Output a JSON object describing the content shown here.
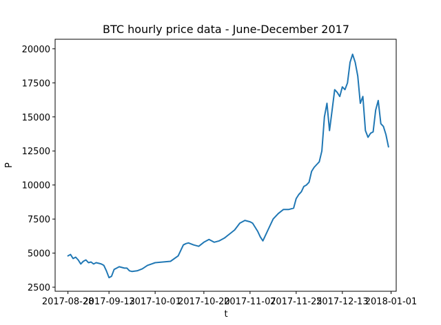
{
  "chart_data": {
    "type": "line",
    "title": "BTC hourly price data - June-December 2017",
    "xlabel": "t",
    "ylabel": "P",
    "xlim": [
      "2017-08-23",
      "2018-01-03"
    ],
    "ylim": [
      2200,
      20700
    ],
    "grid": false,
    "line_color": "#1f77b4",
    "x_ticks": [
      "2017-08-28",
      "2017-09-13",
      "2017-10-01",
      "2017-10-20",
      "2017-11-07",
      "2017-11-25",
      "2017-12-13",
      "2018-01-01"
    ],
    "x_tick_labels": [
      "2017-08-28",
      "2017-09-13",
      "2017-10-01",
      "2017-10-20",
      "2017-11-07",
      "2017-11-25",
      "2017-12-13",
      "2018-01-01"
    ],
    "y_ticks": [
      2500,
      5000,
      7500,
      10000,
      12500,
      15000,
      17500,
      20000
    ],
    "y_tick_labels": [
      "2500",
      "5000",
      "7500",
      "10000",
      "12500",
      "15000",
      "17500",
      "20000"
    ],
    "series": [
      {
        "x": [
          "2017-08-28",
          "2017-08-29",
          "2017-08-30",
          "2017-08-31",
          "2017-09-01",
          "2017-09-02",
          "2017-09-03",
          "2017-09-04",
          "2017-09-05",
          "2017-09-06",
          "2017-09-07",
          "2017-09-08",
          "2017-09-09",
          "2017-09-10",
          "2017-09-11",
          "2017-09-12",
          "2017-09-13",
          "2017-09-14",
          "2017-09-15",
          "2017-09-16",
          "2017-09-17",
          "2017-09-18",
          "2017-09-19",
          "2017-09-20",
          "2017-09-21",
          "2017-09-22",
          "2017-09-24",
          "2017-09-26",
          "2017-09-28",
          "2017-10-01",
          "2017-10-04",
          "2017-10-07",
          "2017-10-10",
          "2017-10-12",
          "2017-10-13",
          "2017-10-14",
          "2017-10-16",
          "2017-10-18",
          "2017-10-20",
          "2017-10-22",
          "2017-10-24",
          "2017-10-26",
          "2017-10-28",
          "2017-10-30",
          "2017-11-01",
          "2017-11-03",
          "2017-11-05",
          "2017-11-07",
          "2017-11-08",
          "2017-11-10",
          "2017-11-11",
          "2017-11-12",
          "2017-11-13",
          "2017-11-14",
          "2017-11-16",
          "2017-11-18",
          "2017-11-20",
          "2017-11-22",
          "2017-11-24",
          "2017-11-25",
          "2017-11-26",
          "2017-11-27",
          "2017-11-28",
          "2017-11-29",
          "2017-11-30",
          "2017-12-01",
          "2017-12-02",
          "2017-12-03",
          "2017-12-04",
          "2017-12-05",
          "2017-12-06",
          "2017-12-07",
          "2017-12-08",
          "2017-12-09",
          "2017-12-10",
          "2017-12-11",
          "2017-12-12",
          "2017-12-13",
          "2017-12-14",
          "2017-12-15",
          "2017-12-16",
          "2017-12-17",
          "2017-12-18",
          "2017-12-19",
          "2017-12-20",
          "2017-12-21",
          "2017-12-22",
          "2017-12-23",
          "2017-12-24",
          "2017-12-25",
          "2017-12-26",
          "2017-12-27",
          "2017-12-28",
          "2017-12-29",
          "2017-12-30",
          "2017-12-31"
        ],
        "y": [
          4800,
          4900,
          4600,
          4700,
          4500,
          4200,
          4400,
          4500,
          4300,
          4350,
          4200,
          4300,
          4250,
          4200,
          4100,
          3700,
          3200,
          3300,
          3800,
          3900,
          4000,
          3950,
          3900,
          3900,
          3700,
          3650,
          3700,
          3850,
          4100,
          4300,
          4350,
          4400,
          4800,
          5600,
          5700,
          5750,
          5600,
          5500,
          5800,
          6000,
          5800,
          5900,
          6100,
          6400,
          6700,
          7200,
          7400,
          7300,
          7200,
          6600,
          6200,
          5900,
          6300,
          6700,
          7500,
          7900,
          8200,
          8200,
          8300,
          9000,
          9300,
          9500,
          9900,
          10000,
          10200,
          11000,
          11300,
          11500,
          11700,
          12500,
          15000,
          16000,
          14000,
          15500,
          17000,
          16800,
          16500,
          17200,
          17000,
          17500,
          19000,
          19600,
          19000,
          18000,
          16000,
          16500,
          14000,
          13500,
          13800,
          13900,
          15500,
          16200,
          14500,
          14300,
          13700,
          12800
        ]
      }
    ]
  }
}
